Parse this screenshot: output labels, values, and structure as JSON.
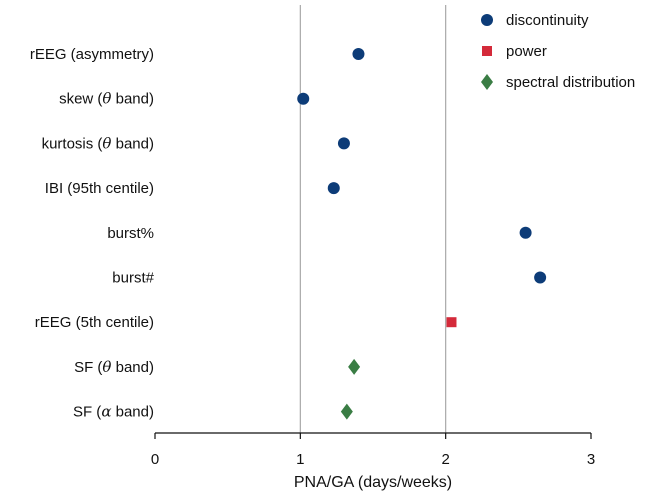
{
  "chart_data": {
    "type": "scatter",
    "orientation": "horizontal",
    "xlabel": "PNA/GA (days/weeks)",
    "xlim": [
      0,
      3
    ],
    "xticks": [
      0,
      1,
      2,
      3
    ],
    "xtick_labels": [
      "0",
      "1",
      "2",
      "3"
    ],
    "reference_lines": [
      1,
      2
    ],
    "grid": false,
    "legend_position": "top-right",
    "categories": [
      {
        "prefix": "rEEG (asymmetry)",
        "greek": "",
        "suffix": ""
      },
      {
        "prefix": "skew (",
        "greek": "θ",
        "suffix": " band)"
      },
      {
        "prefix": "kurtosis (",
        "greek": "θ",
        "suffix": " band)"
      },
      {
        "prefix": "IBI (95th centile)",
        "greek": "",
        "suffix": ""
      },
      {
        "prefix": "burst%",
        "greek": "",
        "suffix": ""
      },
      {
        "prefix": "burst#",
        "greek": "",
        "suffix": ""
      },
      {
        "prefix": "rEEG (5th centile)",
        "greek": "",
        "suffix": ""
      },
      {
        "prefix": "SF (",
        "greek": "θ",
        "suffix": " band)"
      },
      {
        "prefix": "SF (",
        "greek": "α",
        "suffix": " band)"
      }
    ],
    "series": [
      {
        "name": "discontinuity",
        "marker": "circle",
        "color": "#0d3c78",
        "points": [
          {
            "category": 0,
            "x": 1.4
          },
          {
            "category": 1,
            "x": 1.02
          },
          {
            "category": 2,
            "x": 1.3
          },
          {
            "category": 3,
            "x": 1.23
          },
          {
            "category": 4,
            "x": 2.55
          },
          {
            "category": 5,
            "x": 2.65
          }
        ]
      },
      {
        "name": "power",
        "marker": "square",
        "color": "#d42a3a",
        "points": [
          {
            "category": 6,
            "x": 2.04
          }
        ]
      },
      {
        "name": "spectral distribution",
        "marker": "diamond",
        "color": "#3a7d44",
        "points": [
          {
            "category": 7,
            "x": 1.37
          },
          {
            "category": 8,
            "x": 1.32
          }
        ]
      }
    ]
  }
}
